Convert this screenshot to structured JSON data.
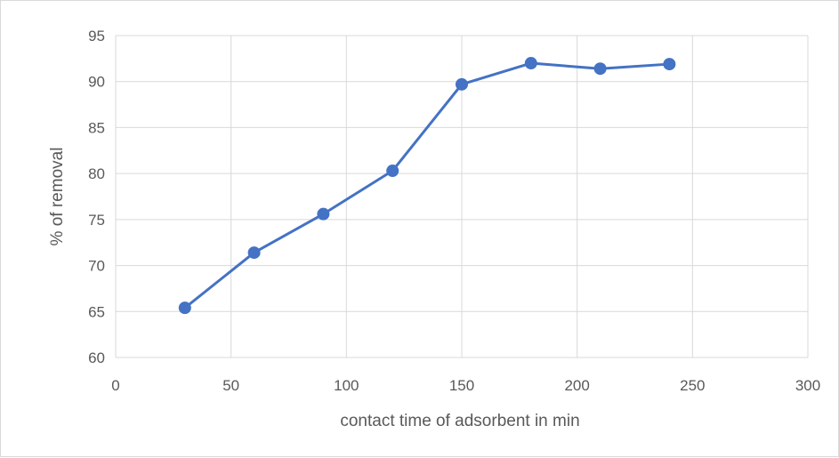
{
  "chart_data": {
    "type": "line",
    "title": "",
    "xlabel": "contact time of adsorbent in min",
    "ylabel": "% of removal",
    "xlim": [
      0,
      300
    ],
    "ylim": [
      60,
      95
    ],
    "x_ticks": [
      0,
      50,
      100,
      150,
      200,
      250,
      300
    ],
    "y_ticks": [
      60,
      65,
      70,
      75,
      80,
      85,
      90,
      95
    ],
    "grid": true,
    "legend": "none",
    "series": [
      {
        "color": "#4472c4",
        "marker": "circle",
        "x": [
          30,
          60,
          90,
          120,
          150,
          180,
          210,
          240
        ],
        "y": [
          65.4,
          71.4,
          75.6,
          80.3,
          89.7,
          92.0,
          91.4,
          91.9
        ]
      }
    ]
  },
  "colors": {
    "gridline": "#d9d9d9",
    "axis_text": "#595959"
  }
}
